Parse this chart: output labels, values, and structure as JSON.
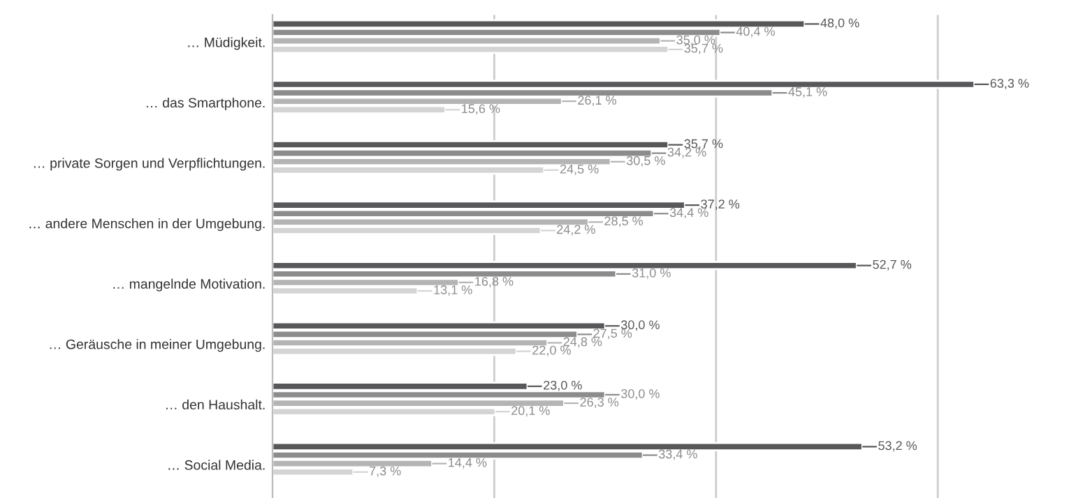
{
  "chart_data": {
    "type": "bar",
    "orientation": "horizontal",
    "categories": [
      "… Müdigkeit.",
      "… das Smartphone.",
      "… private Sorgen und Verpflichtungen.",
      "… andere Menschen in der Umgebung.",
      "… mangelnde Motivation.",
      "… Geräusche in meiner Umgebung.",
      "… den Haushalt.",
      "… Social Media."
    ],
    "series": [
      {
        "color": "#58585a",
        "values": [
          48.0,
          63.3,
          35.7,
          37.2,
          52.7,
          30.0,
          23.0,
          53.2
        ],
        "value_labels": [
          "48,0 %",
          "63,3 %",
          "35,7 %",
          "37,2 %",
          "52,7 %",
          "30,0 %",
          "23,0 %",
          "53,2 %"
        ]
      },
      {
        "color": "#8c8c8c",
        "values": [
          40.4,
          45.1,
          34.2,
          34.4,
          31.0,
          27.5,
          30.0,
          33.4
        ],
        "value_labels": [
          "40,4 %",
          "45,1 %",
          "34,2 %",
          "34,4 %",
          "31,0 %",
          "27,5 %",
          "30,0 %",
          "33,4 %"
        ]
      },
      {
        "color": "#b4b4b4",
        "values": [
          35.0,
          26.1,
          30.5,
          28.5,
          16.8,
          24.8,
          26.3,
          14.4
        ],
        "value_labels": [
          "35,0 %",
          "26,1 %",
          "30,5 %",
          "28,5 %",
          "16,8 %",
          "24,8 %",
          "26,3 %",
          "14,4 %"
        ]
      },
      {
        "color": "#d4d4d4",
        "values": [
          35.7,
          15.6,
          24.5,
          24.2,
          13.1,
          22.0,
          20.1,
          7.3
        ],
        "value_labels": [
          "35,7 %",
          "15,6 %",
          "24,5 %",
          "24,2 %",
          "13,1 %",
          "22,0 %",
          "20,1 %",
          "7,3 %"
        ]
      }
    ],
    "xticks": [
      {
        "value": 20,
        "label": null
      },
      {
        "value": 40,
        "label": null
      },
      {
        "value": 60,
        "label": null
      }
    ],
    "grid": "x",
    "legend": false
  }
}
